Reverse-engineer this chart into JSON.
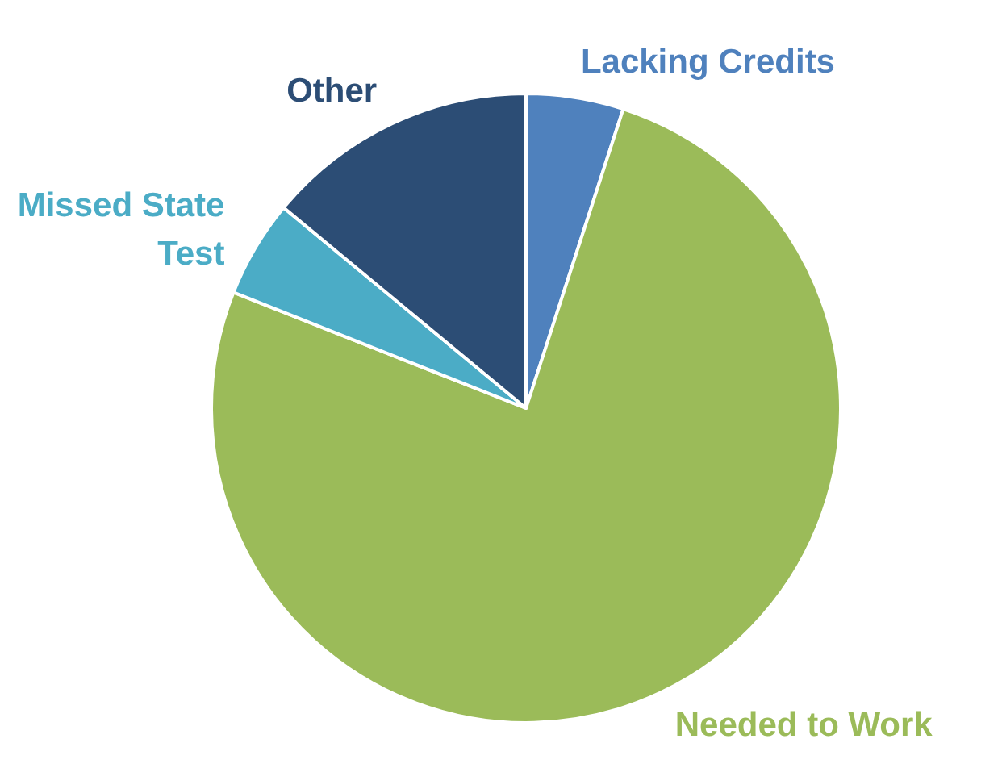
{
  "chart_data": {
    "type": "pie",
    "categories": [
      "Lacking Credits",
      "Needed to Work",
      "Missed State Test",
      "Other"
    ],
    "values": [
      5,
      76,
      5,
      14
    ],
    "colors": [
      "#4f81bd",
      "#9bbb59",
      "#4bacc6",
      "#2c4d75"
    ],
    "legend": false
  }
}
